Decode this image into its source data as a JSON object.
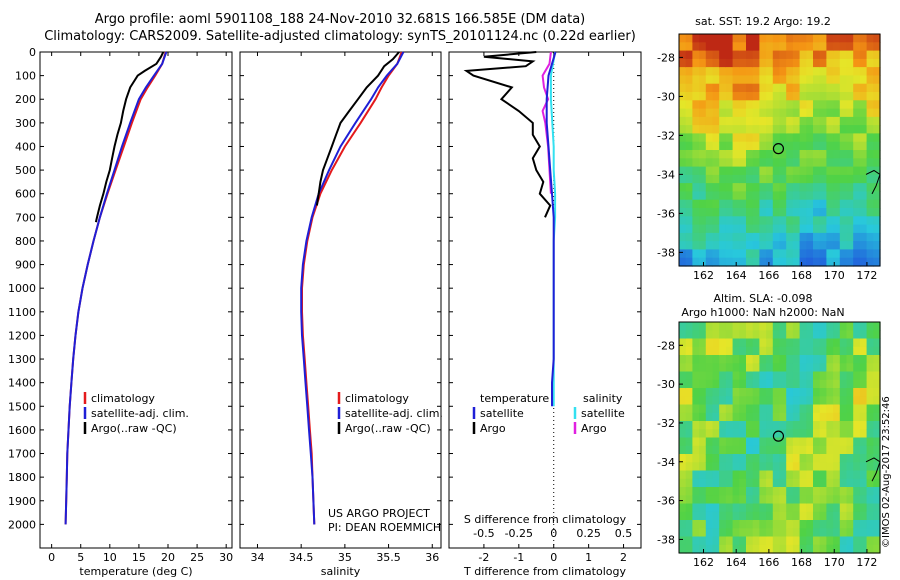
{
  "header": {
    "line1": "Argo profile: aoml 5901108_188 24-Nov-2010 32.681S 166.585E (DM data)",
    "line2": "Climatology: CARS2009. Satellite-adjusted climatology: synTS_20101124.nc (0.22d earlier)"
  },
  "colors": {
    "climatology": "#e41a1c",
    "satellite": "#1f1fd6",
    "argo": "#000000",
    "sat_temp_diff": "#33e0f0",
    "argo_sal_diff": "#e020e0"
  },
  "chart_data": [
    {
      "type": "line",
      "name": "temperature-profile",
      "xlabel": "temperature (deg C)",
      "ylabel": "",
      "xlim": [
        -2,
        31
      ],
      "ylim": [
        2100,
        0
      ],
      "x_ticks": [
        0,
        5,
        10,
        15,
        20,
        25,
        30
      ],
      "y_ticks": [
        0,
        100,
        200,
        300,
        400,
        500,
        600,
        700,
        800,
        900,
        1000,
        1100,
        1200,
        1300,
        1400,
        1500,
        1600,
        1700,
        1800,
        1900,
        2000
      ],
      "legend": [
        "climatology",
        "satellite-adj. clim.",
        "Argo(..raw -QC)"
      ],
      "series": [
        {
          "name": "climatology",
          "depth": [
            0,
            50,
            100,
            150,
            200,
            300,
            400,
            500,
            600,
            700,
            800,
            900,
            1000,
            1100,
            1200,
            1300,
            1400,
            1500,
            1600,
            1700,
            1800,
            1900,
            2000
          ],
          "values": [
            19.6,
            19.0,
            17.8,
            16.5,
            15.3,
            13.8,
            12.4,
            11.0,
            9.6,
            8.3,
            7.2,
            6.2,
            5.3,
            4.6,
            4.1,
            3.7,
            3.4,
            3.1,
            2.9,
            2.7,
            2.6,
            2.5,
            2.4
          ]
        },
        {
          "name": "satellite-adj. clim.",
          "depth": [
            0,
            50,
            100,
            150,
            200,
            300,
            400,
            500,
            600,
            700,
            800,
            900,
            1000,
            1100,
            1200,
            1300,
            1400,
            1500,
            1600,
            1700,
            1800,
            1900,
            2000
          ],
          "values": [
            19.7,
            19.0,
            17.6,
            16.2,
            15.0,
            13.5,
            12.1,
            10.8,
            9.5,
            8.3,
            7.2,
            6.2,
            5.3,
            4.6,
            4.1,
            3.7,
            3.4,
            3.1,
            2.9,
            2.7,
            2.6,
            2.5,
            2.4
          ]
        },
        {
          "name": "Argo",
          "depth": [
            0,
            20,
            50,
            80,
            100,
            150,
            200,
            250,
            300,
            350,
            400,
            450,
            500,
            550,
            600,
            650,
            700,
            720
          ],
          "values": [
            19.2,
            18.8,
            18.0,
            16.0,
            14.8,
            13.5,
            12.8,
            12.3,
            11.9,
            11.3,
            10.8,
            10.4,
            10.0,
            9.4,
            8.9,
            8.3,
            7.8,
            7.6
          ]
        }
      ]
    },
    {
      "type": "line",
      "name": "salinity-profile",
      "xlabel": "salinity",
      "xlim": [
        33.8,
        36.1
      ],
      "ylim": [
        2100,
        0
      ],
      "x_ticks": [
        34,
        34.5,
        35,
        35.5,
        36
      ],
      "legend": [
        "climatology",
        "satellite-adj. clim.",
        "Argo(..raw -QC)"
      ],
      "annotation": [
        "US ARGO PROJECT",
        "PI: DEAN ROEMMICH"
      ],
      "series": [
        {
          "name": "climatology",
          "depth": [
            0,
            50,
            100,
            150,
            200,
            300,
            400,
            500,
            600,
            700,
            800,
            900,
            1000,
            1100,
            1200,
            1300,
            1400,
            1500,
            1600,
            1700,
            1800,
            1900,
            2000
          ],
          "values": [
            35.65,
            35.6,
            35.5,
            35.42,
            35.35,
            35.18,
            35.0,
            34.85,
            34.72,
            34.63,
            34.57,
            34.53,
            34.51,
            34.51,
            34.52,
            34.54,
            34.56,
            34.58,
            34.6,
            34.62,
            34.63,
            34.64,
            34.65
          ]
        },
        {
          "name": "satellite-adj. clim.",
          "depth": [
            0,
            50,
            100,
            150,
            200,
            300,
            400,
            500,
            600,
            700,
            800,
            900,
            1000,
            1100,
            1200,
            1300,
            1400,
            1500,
            1600,
            1700,
            1800,
            1900,
            2000
          ],
          "values": [
            35.67,
            35.6,
            35.48,
            35.38,
            35.3,
            35.12,
            34.95,
            34.82,
            34.7,
            34.62,
            34.56,
            34.52,
            34.5,
            34.5,
            34.51,
            34.53,
            34.55,
            34.57,
            34.59,
            34.61,
            34.63,
            34.64,
            34.65
          ]
        },
        {
          "name": "Argo",
          "depth": [
            0,
            30,
            60,
            100,
            150,
            200,
            250,
            300,
            350,
            400,
            450,
            500,
            550,
            600,
            650
          ],
          "values": [
            35.62,
            35.55,
            35.45,
            35.38,
            35.25,
            35.15,
            35.05,
            34.95,
            34.9,
            34.85,
            34.8,
            34.75,
            34.72,
            34.7,
            34.68
          ]
        }
      ]
    },
    {
      "type": "line",
      "name": "difference-profile",
      "xlabel": "T difference from climatology",
      "xlabel_top": "S difference from climatology",
      "xlim": [
        -3,
        2.5
      ],
      "ylim": [
        2100,
        0
      ],
      "x_ticks": [
        -2,
        -1,
        0,
        1,
        2
      ],
      "s_ticks": [
        "-0.5",
        "-0.25",
        "0",
        "0.25",
        "0.5"
      ],
      "legend_temperature_title": "temperature",
      "legend_salinity_title": "salinity",
      "legend_temperature": [
        "satellite",
        "Argo"
      ],
      "legend_salinity": [
        "satellite",
        "Argo"
      ],
      "series": [
        {
          "name": "temperature satellite",
          "depth": [
            0,
            100,
            200,
            300,
            400,
            500,
            600,
            700,
            800,
            900,
            1000,
            1100,
            1200,
            1300,
            1400,
            1500
          ],
          "values": [
            0.05,
            -0.15,
            -0.2,
            -0.2,
            -0.15,
            -0.1,
            -0.05,
            0,
            0,
            0,
            0,
            0,
            0,
            0,
            -0.05,
            -0.05
          ]
        },
        {
          "name": "temperature Argo",
          "depth": [
            0,
            20,
            40,
            60,
            80,
            100,
            150,
            200,
            250,
            300,
            350,
            400,
            450,
            500,
            550,
            600,
            650,
            700
          ],
          "values": [
            -0.5,
            -2.0,
            -0.6,
            -0.8,
            -2.5,
            -2.3,
            -1.2,
            -1.5,
            -1.0,
            -0.6,
            -0.6,
            -0.4,
            -0.6,
            -0.5,
            -0.3,
            -0.4,
            -0.1,
            -0.25
          ]
        },
        {
          "name": "salinity satellite",
          "depth": [
            0,
            100,
            200,
            300,
            400,
            500,
            600,
            700,
            800,
            900,
            1000,
            1100,
            1200,
            1300,
            1400,
            1500
          ],
          "values": [
            0.01,
            -0.02,
            -0.02,
            -0.01,
            0,
            0,
            0.01,
            0.01,
            0,
            0,
            0,
            0,
            0,
            0,
            0,
            0
          ]
        },
        {
          "name": "salinity Argo",
          "depth": [
            0,
            50,
            100,
            150,
            200,
            250,
            300,
            400,
            500,
            600
          ],
          "values": [
            -0.02,
            -0.03,
            -0.08,
            -0.07,
            -0.04,
            -0.08,
            -0.06,
            -0.04,
            -0.03,
            -0.02
          ]
        }
      ]
    },
    {
      "type": "heatmap",
      "name": "sst-map",
      "title": "sat. SST: 19.2  Argo: 19.2",
      "x_ticks": [
        162,
        164,
        166,
        168,
        170,
        172
      ],
      "y_ticks": [
        -28,
        -30,
        -32,
        -34,
        -36,
        -38
      ],
      "xlim": [
        160.5,
        172.8
      ],
      "ylim": [
        -38.7,
        -26.8
      ],
      "marker": {
        "lon": 166.585,
        "lat": -32.681
      }
    },
    {
      "type": "heatmap",
      "name": "sla-map",
      "title_line1": "Altim. SLA: -0.098",
      "title_line2": "Argo h1000: NaN h2000: NaN",
      "x_ticks": [
        162,
        164,
        166,
        168,
        170,
        172
      ],
      "y_ticks": [
        -28,
        -30,
        -32,
        -34,
        -36,
        -38
      ],
      "xlim": [
        160.5,
        172.8
      ],
      "ylim": [
        -38.7,
        -26.8
      ],
      "marker": {
        "lon": 166.585,
        "lat": -32.681
      }
    }
  ],
  "footer": {
    "stamp": "©IMOS 02-Aug-2017 23:52:46"
  }
}
